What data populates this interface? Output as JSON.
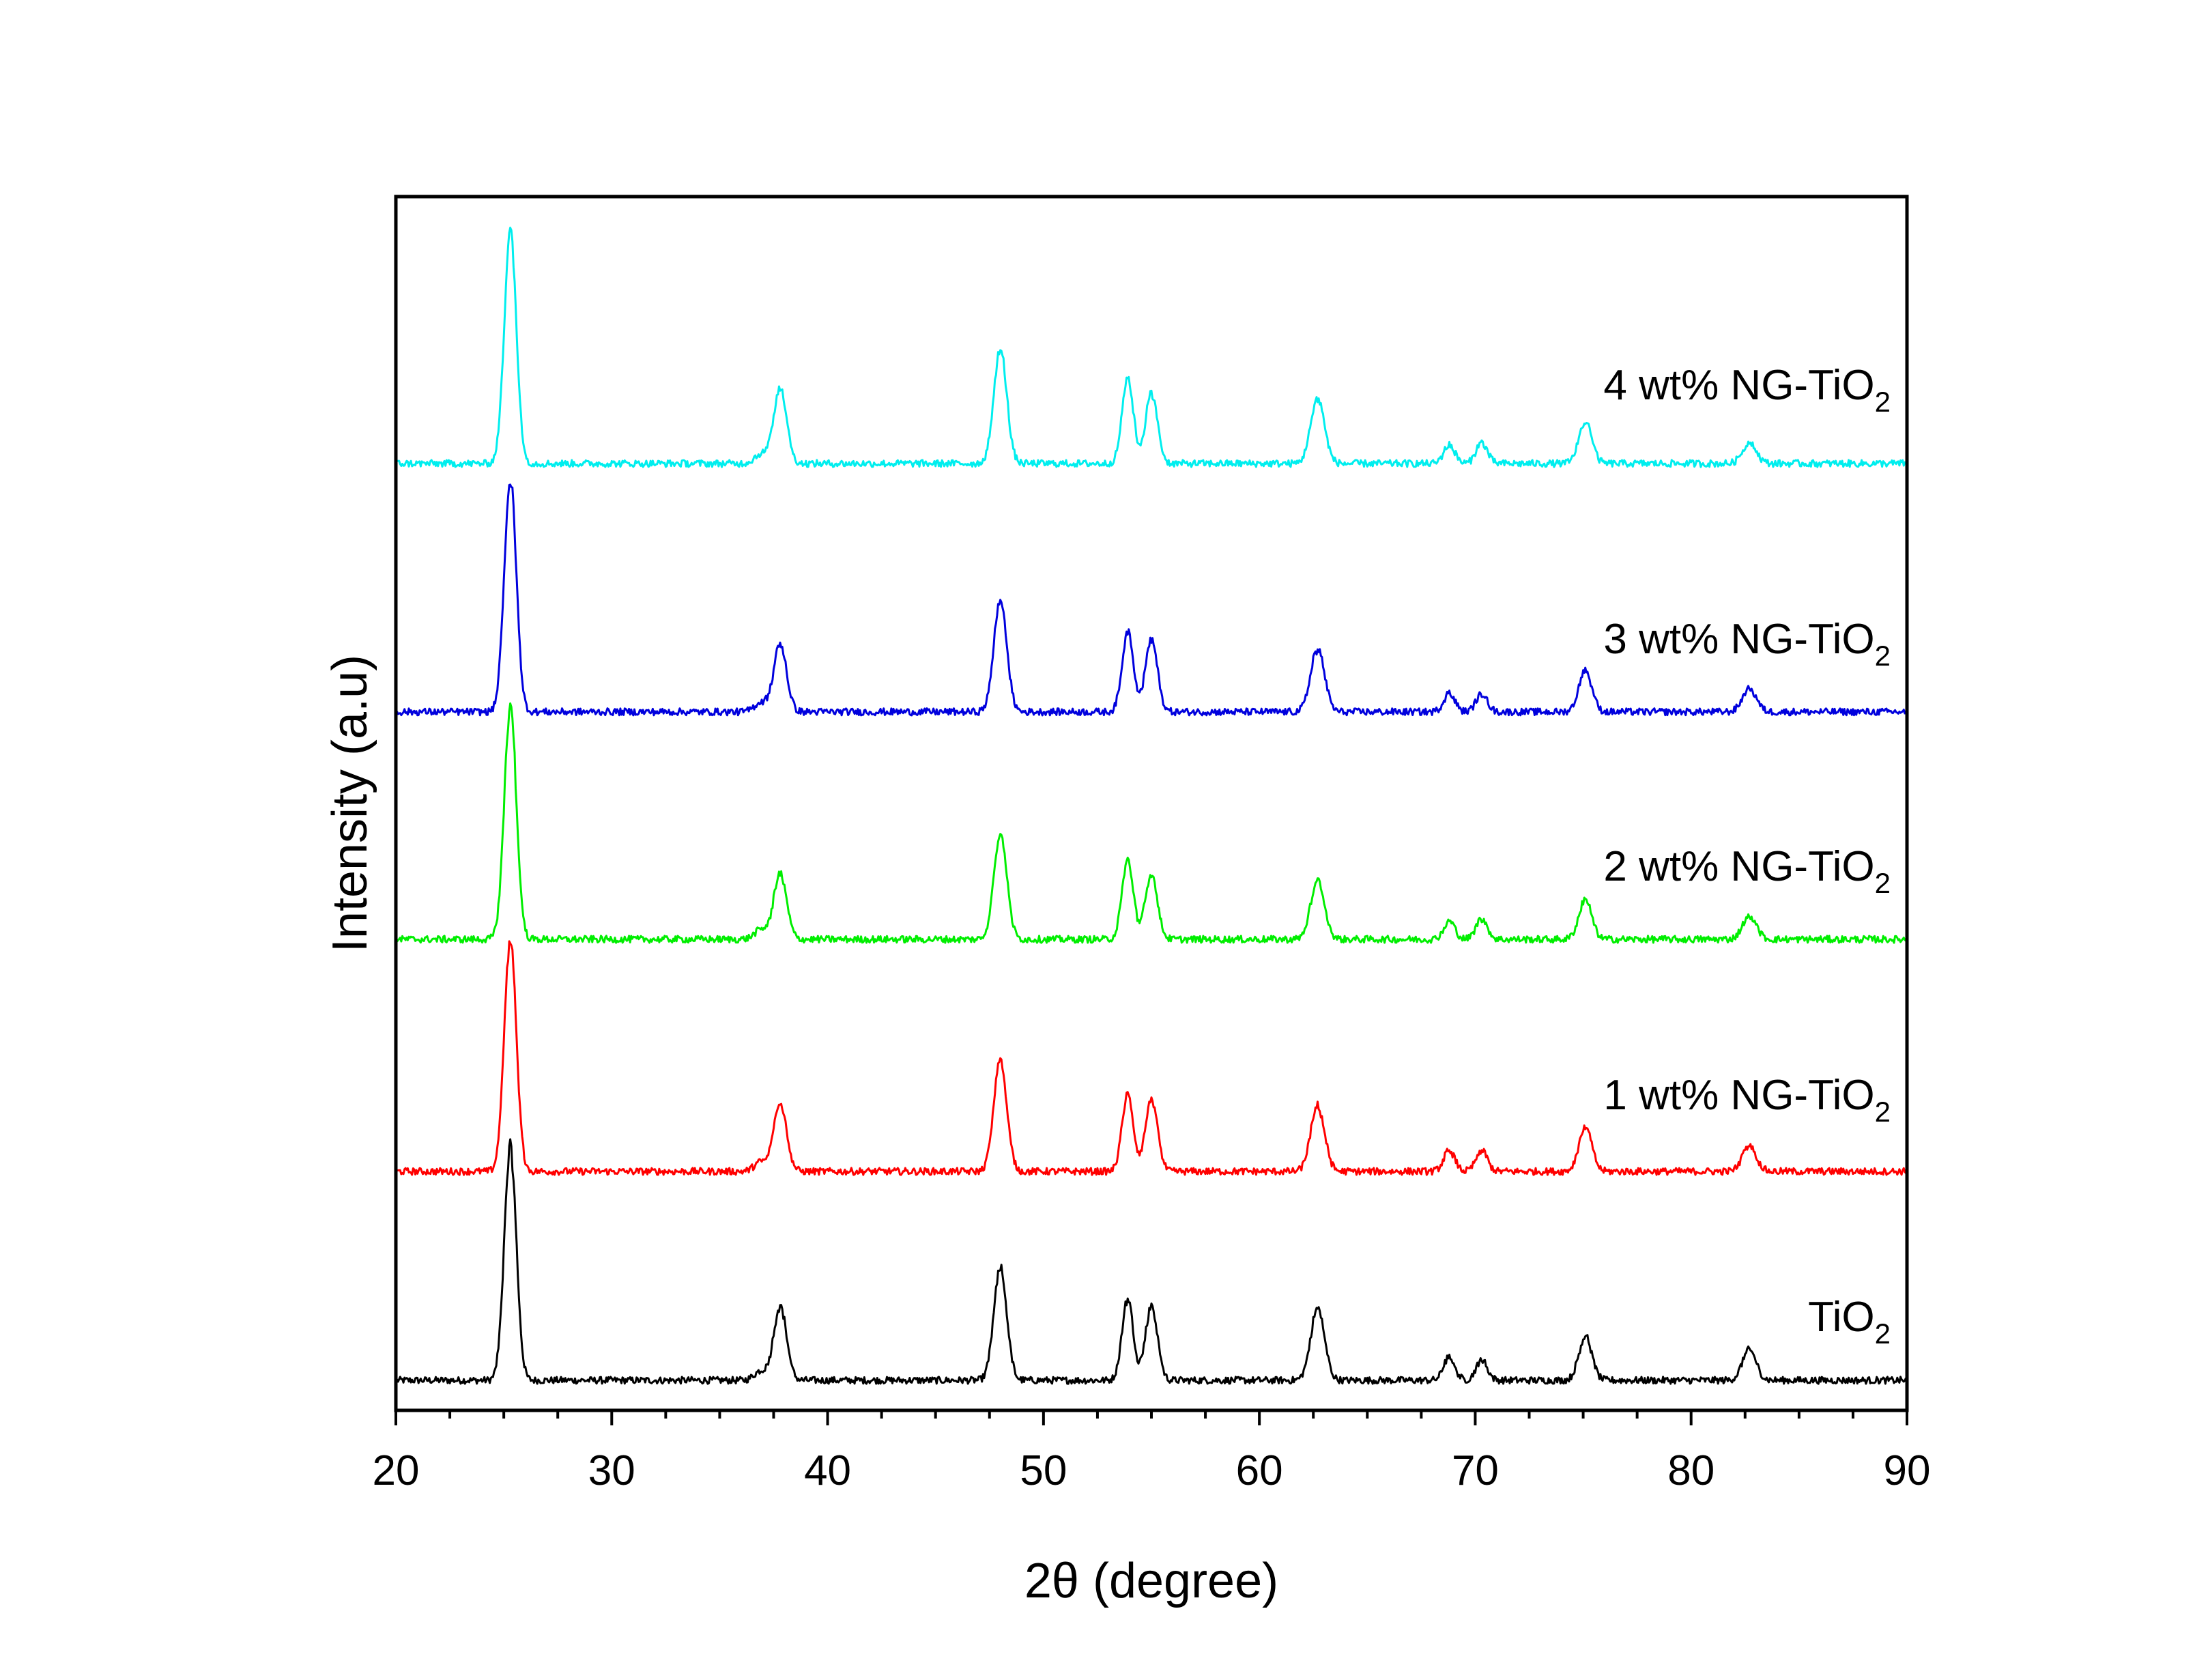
{
  "chart_data": {
    "type": "line",
    "title": "",
    "xlabel": "2θ (degree)",
    "ylabel": "Intensity (a.u)",
    "xlim": [
      20,
      90
    ],
    "xticks": [
      20,
      30,
      40,
      50,
      60,
      70,
      80,
      90
    ],
    "y_axis_ticks_shown": false,
    "grid": false,
    "legend": "none (series labeled inline to the right of each curve)",
    "note": "Stacked XRD patterns; each series offset vertically. Intensities are relative (a.u.) above each series baseline.",
    "peak_positions_2theta": [
      25.3,
      37.8,
      48.0,
      53.9,
      55.0,
      62.7,
      68.8,
      70.3,
      75.1,
      82.7
    ],
    "series": [
      {
        "name": "TiO2",
        "label_main": "TiO",
        "label_sub": "2",
        "color": "#000000",
        "offset": 0,
        "peak_heights": [
          100,
          32,
          48,
          35,
          32,
          31,
          10,
          9,
          19,
          13
        ]
      },
      {
        "name": "1 wt% NG-TiO2",
        "label_main": "1 wt% NG-TiO",
        "label_sub": "2",
        "color": "#ff0000",
        "offset": 90,
        "peak_heights": [
          100,
          30,
          48,
          33,
          31,
          28,
          9,
          9,
          19,
          11
        ]
      },
      {
        "name": "2 wt% NG-TiO2",
        "label_main": "2 wt% NG-TiO",
        "label_sub": "2",
        "color": "#00ee00",
        "offset": 190,
        "peak_heights": [
          100,
          28,
          46,
          34,
          28,
          25,
          8,
          9,
          17,
          10
        ]
      },
      {
        "name": "3 wt% NG-TiO2",
        "label_main": "3 wt% NG-TiO",
        "label_sub": "2",
        "color": "#0000dd",
        "offset": 288,
        "peak_heights": [
          100,
          29,
          48,
          35,
          31,
          27,
          8,
          8,
          18,
          10
        ]
      },
      {
        "name": "4 wt% NG-TiO2",
        "label_main": "4 wt% NG-TiO",
        "label_sub": "2",
        "color": "#00eeee",
        "offset": 395,
        "peak_heights": [
          100,
          33,
          49,
          37,
          30,
          28,
          8,
          9,
          18,
          9
        ]
      }
    ]
  }
}
